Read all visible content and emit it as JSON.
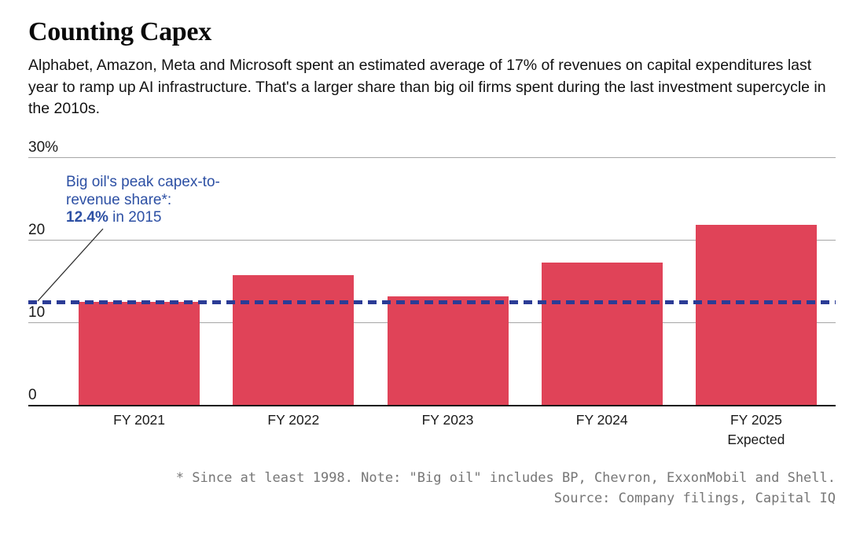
{
  "title": "Counting Capex",
  "subtitle": "Alphabet, Amazon, Meta and Microsoft spent an estimated average of 17% of revenues on capital expenditures last year to ramp up AI infrastructure. That's a larger share than big oil firms spent during the last investment supercycle in the 2010s.",
  "annotation": {
    "line1": "Big oil's peak capex-to-",
    "line2": "revenue share*:",
    "value_bold": "12.4%",
    "value_rest": " in 2015"
  },
  "footnote": "* Since at least 1998. Note: \"Big oil\" includes BP, Chevron, ExxonMobil and Shell.",
  "source": "Source: Company filings, Capital IQ",
  "colors": {
    "bar": "#e04358",
    "reference_line": "#2b3c96",
    "annotation_text": "#2d50a4",
    "gridline": "#a6a6a6",
    "baseline": "#161616",
    "footnote_text": "#767676"
  },
  "chart_data": {
    "type": "bar",
    "title": "Counting Capex",
    "categories": [
      "FY 2021",
      "FY 2022",
      "FY 2023",
      "FY 2024",
      "FY 2025"
    ],
    "category_sublabels": [
      "",
      "",
      "",
      "",
      "Expected"
    ],
    "values": [
      12.5,
      15.7,
      13.1,
      17.2,
      21.8
    ],
    "unit": "%",
    "ylim": [
      0,
      30
    ],
    "yticks": [
      0,
      10,
      20,
      30
    ],
    "ytick_labels": [
      "0",
      "10",
      "20",
      "30%"
    ],
    "grid": true,
    "legend": "none",
    "reference_line": {
      "value": 12.4,
      "style": "dashed",
      "label": "Big oil's peak capex-to-revenue share*: 12.4% in 2015"
    }
  }
}
